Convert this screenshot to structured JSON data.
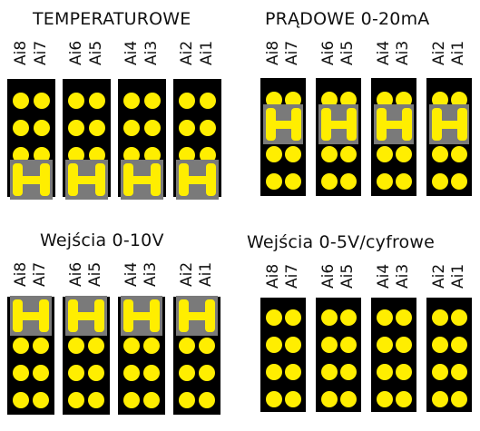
{
  "labels": [
    "Ai8",
    "Ai7",
    "Ai6",
    "Ai5",
    "Ai4",
    "Ai3",
    "Ai2",
    "Ai1"
  ],
  "colors": {
    "block": "#000000",
    "pin": "#ffee00",
    "jumper": "#7a7a7a"
  },
  "panels": [
    {
      "id": "temp",
      "title": "TEMPERATUROWE",
      "jumper_row": 3
    },
    {
      "id": "current",
      "title": "PRĄDOWE 0-20mA",
      "jumper_row": 1
    },
    {
      "id": "v10",
      "title": "Wejścia 0-10V",
      "jumper_row": 0
    },
    {
      "id": "v5",
      "title": "Wejścia 0-5V/cyfrowe",
      "jumper_row": null
    }
  ]
}
